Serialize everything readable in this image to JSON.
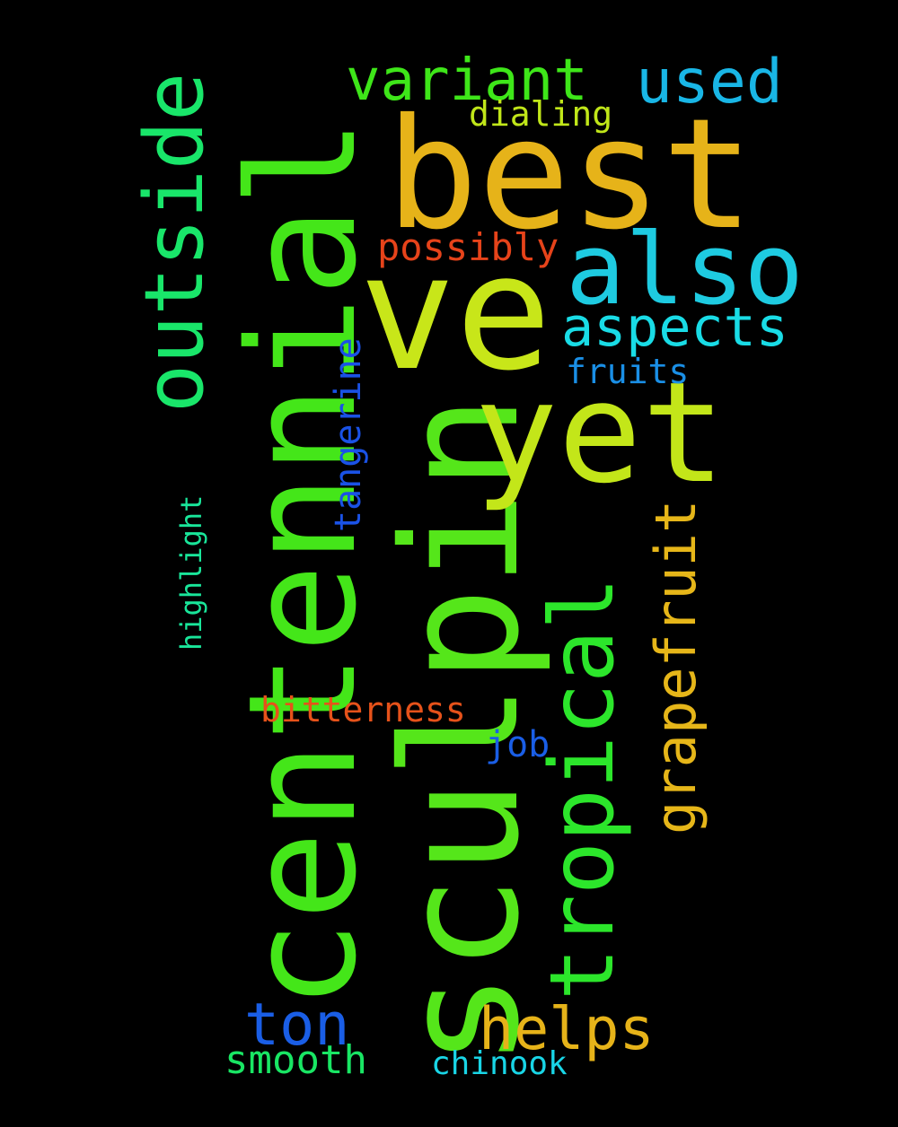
{
  "words": {
    "sculpin": {
      "text": "sculpin",
      "color": "#55e61a"
    },
    "centennial": {
      "text": "centennial",
      "color": "#44e619"
    },
    "best": {
      "text": "best",
      "color": "#e6b319"
    },
    "ve": {
      "text": "ve",
      "color": "#c8e619"
    },
    "yet": {
      "text": "yet",
      "color": "#c3e619"
    },
    "also": {
      "text": "also",
      "color": "#1ecbe1"
    },
    "outside": {
      "text": "outside",
      "color": "#19e66a"
    },
    "tropical": {
      "text": "tropical",
      "color": "#2ce62b"
    },
    "grapefruit": {
      "text": "grapefruit",
      "color": "#e6b619"
    },
    "variant": {
      "text": "variant",
      "color": "#3ee619"
    },
    "used": {
      "text": "used",
      "color": "#19b6e6"
    },
    "aspects": {
      "text": "aspects",
      "color": "#19dce6"
    },
    "helps": {
      "text": "helps",
      "color": "#e6b319"
    },
    "ton": {
      "text": "ton",
      "color": "#1a5ee6"
    },
    "possibly": {
      "text": "possibly",
      "color": "#e6431a"
    },
    "dialing": {
      "text": "dialing",
      "color": "#c0e619"
    },
    "fruits": {
      "text": "fruits",
      "color": "#1a8fe6"
    },
    "bitterness": {
      "text": "bitterness",
      "color": "#e6521a"
    },
    "job": {
      "text": "job",
      "color": "#1a5ee6"
    },
    "smooth": {
      "text": "smooth",
      "color": "#19e664"
    },
    "chinook": {
      "text": "chinook",
      "color": "#19d5e6"
    },
    "tangerine": {
      "text": "tangerine",
      "color": "#1a52e6"
    },
    "highlight": {
      "text": "highlight",
      "color": "#19e69a"
    }
  }
}
